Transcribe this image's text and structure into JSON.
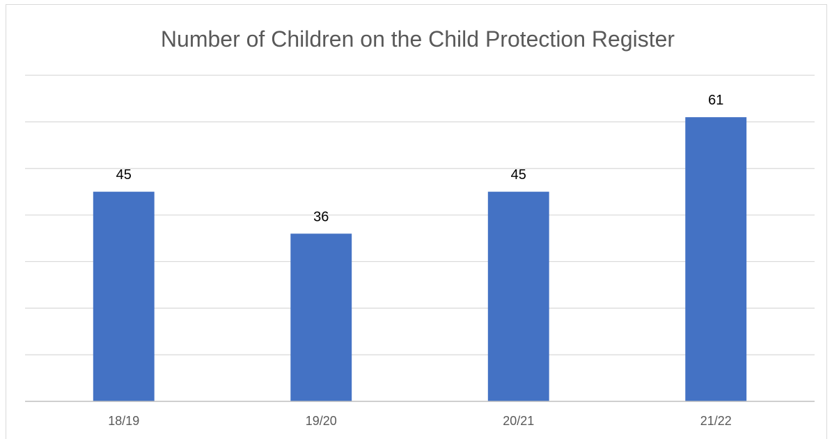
{
  "chart_data": {
    "type": "bar",
    "title": "Number of Children on the Child Protection Register",
    "categories": [
      "18/19",
      "19/20",
      "20/21",
      "21/22"
    ],
    "values": [
      45,
      36,
      45,
      61
    ],
    "xlabel": "",
    "ylabel": "",
    "ylim": [
      0,
      70
    ],
    "y_gridline_step": 10,
    "y_tick_labels_shown": false,
    "grid": true,
    "legend": "none",
    "data_labels": true,
    "colors": {
      "bar": "#4472C4",
      "grid": "#d9d9d9",
      "axis": "#bfbfbf",
      "title": "#595959",
      "tick": "#595959",
      "label": "#000000"
    }
  }
}
